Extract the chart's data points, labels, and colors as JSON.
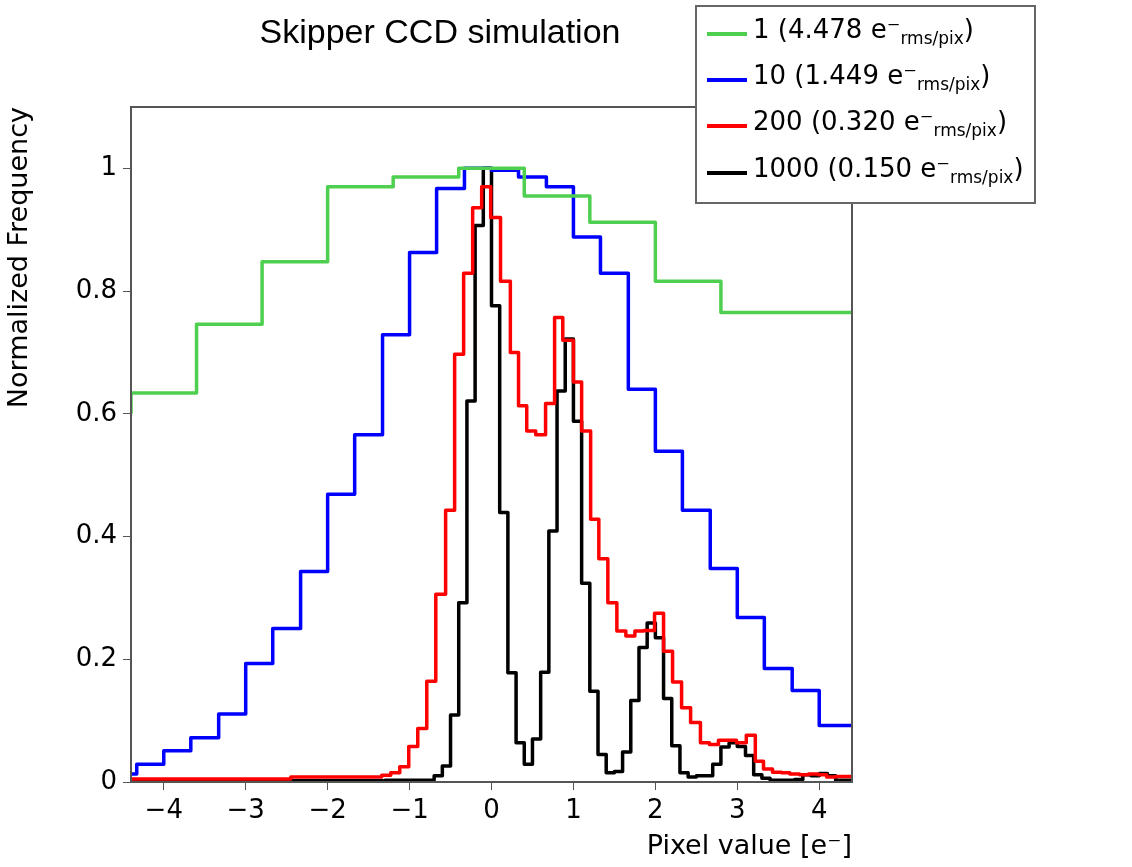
{
  "chart_data": {
    "type": "step",
    "title": "Skipper CCD simulation",
    "xlabel": "Pixel value [e⁻]",
    "ylabel": "Normalized Frequency",
    "xlim": [
      -4.4,
      4.4
    ],
    "xticks": [
      -4,
      -3,
      -2,
      -1,
      0,
      1,
      2,
      3,
      4
    ],
    "ylim": [
      0,
      1.1
    ],
    "yticks": [
      0,
      0.2,
      0.4,
      0.6,
      0.8,
      1
    ],
    "legend": "top right",
    "series": [
      {
        "name": "1 (4.478 e⁻$_{rms/pix}$)",
        "color": "#4fcf4f",
        "x": [
          -4.4,
          -3.6,
          -2.8,
          -2,
          -1.2,
          -0.4,
          0.4,
          1.2,
          2,
          2.8,
          3.6,
          4.4
        ],
        "values": [
          0.6,
          0.634,
          0.746,
          0.848,
          0.97,
          0.986,
          1.0,
          0.955,
          0.912,
          0.816,
          0.765,
          0.765
        ]
      },
      {
        "name": "10 (1.449 e⁻$_{rms/pix}$)",
        "color": "#0000ff",
        "x": [
          -4.4,
          -4.33,
          -4,
          -3.67,
          -3.33,
          -3,
          -2.67,
          -2.33,
          -2,
          -1.67,
          -1.33,
          -1,
          -0.67,
          -0.33,
          0,
          0.33,
          0.67,
          1,
          1.33,
          1.67,
          2,
          2.33,
          2.67,
          3,
          3.33,
          3.67,
          4,
          4.33,
          4.4
        ],
        "values": [
          0.01,
          0.013,
          0.029,
          0.051,
          0.072,
          0.111,
          0.193,
          0.25,
          0.343,
          0.469,
          0.566,
          0.729,
          0.863,
          0.967,
          1.0,
          0.997,
          0.986,
          0.97,
          0.888,
          0.829,
          0.64,
          0.539,
          0.443,
          0.348,
          0.268,
          0.185,
          0.149,
          0.092,
          0.092
        ]
      },
      {
        "name": "200 (0.320 e⁻$_{rms/pix}$)",
        "color": "#ff0000",
        "x": [
          -4.4,
          -2.45,
          -1.34,
          -1.23,
          -1.12,
          -1.01,
          -0.9,
          -0.79,
          -0.68,
          -0.56,
          -0.45,
          -0.34,
          -0.23,
          -0.12,
          -0.01,
          0.11,
          0.23,
          0.33,
          0.43,
          0.54,
          0.66,
          0.77,
          0.87,
          1.0,
          1.1,
          1.21,
          1.31,
          1.42,
          1.53,
          1.64,
          1.75,
          1.86,
          1.99,
          2.1,
          2.21,
          2.32,
          2.43,
          2.55,
          2.66,
          2.77,
          2.87,
          2.99,
          3.11,
          3.22,
          3.32,
          3.43,
          3.54,
          3.64,
          3.76,
          3.87,
          3.99,
          4.09,
          4.2,
          4.31,
          4.4
        ],
        "values": [
          0,
          0.005,
          0.008,
          0.011,
          0.015,
          0.025,
          0.058,
          0.087,
          0.164,
          0.306,
          0.443,
          0.697,
          0.829,
          0.936,
          0.97,
          0.92,
          0.816,
          0.7,
          0.613,
          0.572,
          0.566,
          0.617,
          0.757,
          0.72,
          0.652,
          0.572,
          0.428,
          0.364,
          0.292,
          0.246,
          0.238,
          0.246,
          0.247,
          0.275,
          0.213,
          0.163,
          0.121,
          0.097,
          0.064,
          0.061,
          0.068,
          0.068,
          0.064,
          0.076,
          0.034,
          0.021,
          0.016,
          0.015,
          0.013,
          0.012,
          0.013,
          0.012,
          0.008,
          0.009,
          0.009
        ]
      },
      {
        "name": "1000 (0.150 e⁻$_{rms/pix}$)",
        "color": "#000000",
        "x": [
          -4.4,
          -1.3,
          -0.7,
          -0.6,
          -0.5,
          -0.4,
          -0.3,
          -0.2,
          -0.1,
          0,
          0.1,
          0.2,
          0.3,
          0.4,
          0.5,
          0.6,
          0.7,
          0.8,
          0.9,
          1.0,
          1.1,
          1.2,
          1.3,
          1.4,
          1.5,
          1.6,
          1.7,
          1.8,
          1.9,
          2.0,
          2.1,
          2.2,
          2.3,
          2.4,
          2.5,
          2.6,
          2.7,
          2.8,
          2.9,
          3.0,
          3.1,
          3.2,
          3.3,
          3.4,
          3.5,
          3.6,
          3.7,
          3.8,
          3.9,
          4.0,
          4.1,
          4.2,
          4.3,
          4.4
        ],
        "values": [
          0,
          0.002,
          0.003,
          0.01,
          0.026,
          0.109,
          0.292,
          0.621,
          0.907,
          1.0,
          0.776,
          0.439,
          0.178,
          0.064,
          0.029,
          0.07,
          0.179,
          0.409,
          0.637,
          0.722,
          0.588,
          0.324,
          0.148,
          0.045,
          0.015,
          0.017,
          0.049,
          0.133,
          0.219,
          0.259,
          0.235,
          0.136,
          0.059,
          0.015,
          0.008,
          0.01,
          0.01,
          0.029,
          0.057,
          0.064,
          0.058,
          0.043,
          0.012,
          0.006,
          0.003,
          0.003,
          0.003,
          0.004,
          0.012,
          0.01,
          0.014,
          0.01,
          0.003,
          0.003
        ]
      }
    ]
  }
}
